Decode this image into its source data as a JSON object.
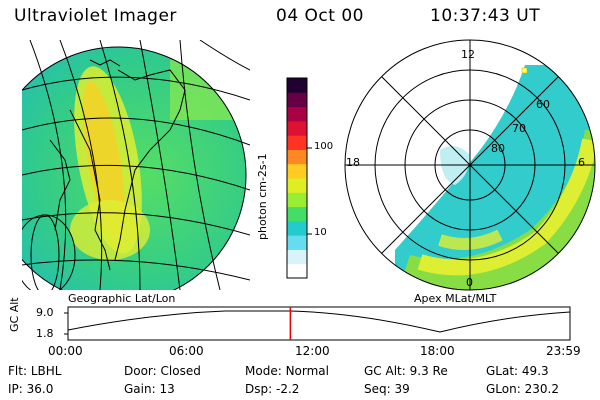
{
  "header": {
    "instrument": "Ultraviolet Imager",
    "date": "04 Oct 00",
    "time": "10:37:43 UT"
  },
  "colorbar": {
    "label": "photon cm-2s-1",
    "ticks": [
      "100",
      "10"
    ],
    "scale": "log",
    "colors": [
      "#ffffff",
      "#d8f4f8",
      "#66ddee",
      "#22cccc",
      "#44dd66",
      "#99ee33",
      "#ddee22",
      "#ffcc22",
      "#ff8822",
      "#ff3322",
      "#dd1133",
      "#aa0044",
      "#660044",
      "#220033"
    ]
  },
  "left_panel": {
    "caption": "Geographic Lat/Lon"
  },
  "right_panel": {
    "caption": "Apex MLat/MLT",
    "mlt_labels": [
      "12",
      "18",
      "6",
      "0"
    ],
    "mlat_labels": [
      "60",
      "70",
      "80"
    ]
  },
  "timeline": {
    "axis_label": "GC Alt",
    "y_ticks": [
      "9.0",
      "1.8"
    ],
    "x_ticks": [
      "00:00",
      "06:00",
      "12:00",
      "18:00",
      "23:59"
    ],
    "current_time_hours": 10.63,
    "marker_color": "#ee0000"
  },
  "status": {
    "row1": [
      {
        "label": "Flt:",
        "value": "LBHL"
      },
      {
        "label": "Door:",
        "value": "Closed"
      },
      {
        "label": "Mode:",
        "value": "Normal"
      },
      {
        "label": "GC Alt:",
        "value": "9.3 Re"
      },
      {
        "label": "GLat:",
        "value": "49.3"
      }
    ],
    "row2": [
      {
        "label": "IP:",
        "value": "36.0"
      },
      {
        "label": "Gain:",
        "value": "13"
      },
      {
        "label": "Dsp:",
        "value": "-2.2"
      },
      {
        "label": "Seq:",
        "value": "39"
      },
      {
        "label": "GLon:",
        "value": "230.2"
      }
    ]
  }
}
